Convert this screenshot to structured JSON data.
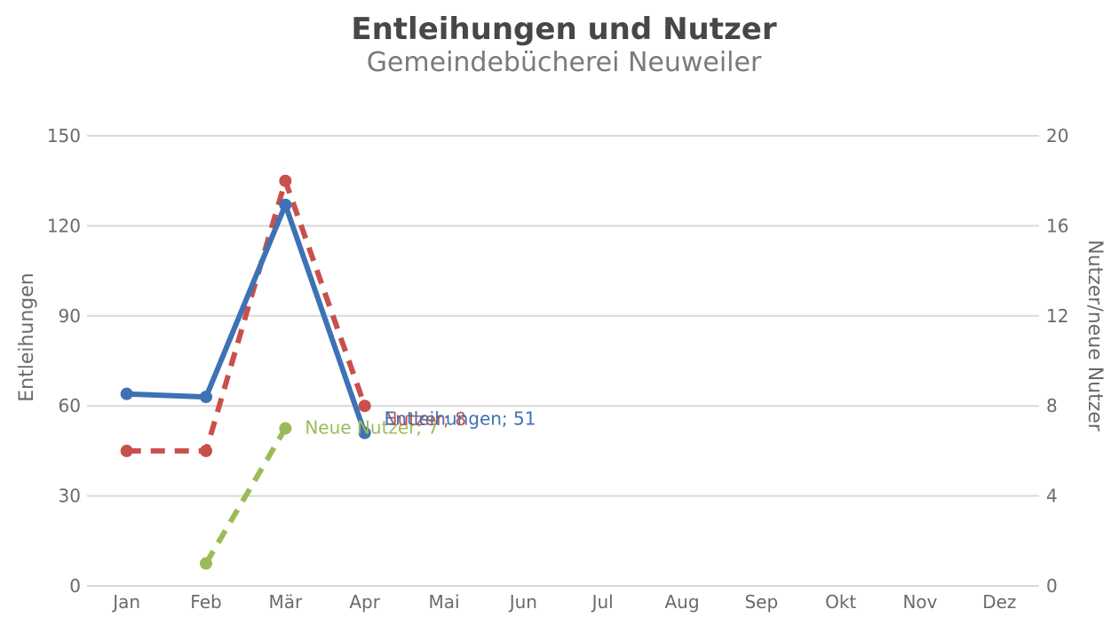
{
  "chart_data": {
    "type": "line",
    "title": "Entleihungen und Nutzer",
    "subtitle": "Gemeindebücherei Neuweiler",
    "categories": [
      "Jan",
      "Feb",
      "Mär",
      "Apr",
      "Mai",
      "Jun",
      "Jul",
      "Aug",
      "Sep",
      "Okt",
      "Nov",
      "Dez"
    ],
    "y_left": {
      "label": "Entleihungen",
      "min": 0,
      "max": 150,
      "ticks": [
        0,
        30,
        60,
        90,
        120,
        150
      ]
    },
    "y_right": {
      "label": "Nutzer/neue Nutzer",
      "min": 0,
      "max": 20,
      "ticks": [
        0,
        4,
        8,
        12,
        16,
        20
      ]
    },
    "grid": true,
    "series": [
      {
        "name": "Entleihungen",
        "axis": "left",
        "color": "#3d72b4",
        "dash": "solid",
        "values": [
          64,
          63,
          127,
          51,
          null,
          null,
          null,
          null,
          null,
          null,
          null,
          null
        ],
        "end_label": "Entleihungen; 51"
      },
      {
        "name": "Nutzer",
        "axis": "right",
        "color": "#c8504b",
        "dash": "dashed",
        "values": [
          6,
          6,
          18,
          8,
          null,
          null,
          null,
          null,
          null,
          null,
          null,
          null
        ],
        "end_label": "Nutzer; 8"
      },
      {
        "name": "Neue Nutzer",
        "axis": "right",
        "color": "#9bbb59",
        "dash": "dashed",
        "values": [
          null,
          1,
          7,
          null,
          null,
          null,
          null,
          null,
          null,
          null,
          null,
          null
        ],
        "end_label": "Neue Nutzer; 7"
      }
    ]
  }
}
